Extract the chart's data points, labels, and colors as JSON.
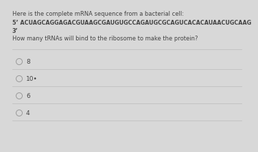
{
  "background_color": "#d8d8d8",
  "content_bg": "#e8e8e8",
  "title_line1": "Here is the complete mRNA sequence from a bacterial cell:",
  "sequence_line1": "5’ ACUAGCAGGAGACGUAAGCGAUGUGCCAGAUGCGCAGUCACACAUAACUGCAAG",
  "sequence_line2": "3’",
  "question": "How many tRNAs will bind to the ribosome to make the protein?",
  "options": [
    "8",
    "10•",
    "6",
    "4"
  ],
  "text_color": "#444444",
  "circle_color": "#999999",
  "divider_color": "#c0c0c0",
  "font_size_title": 6.0,
  "font_size_seq": 5.8,
  "font_size_question": 6.0,
  "font_size_option": 6.5
}
